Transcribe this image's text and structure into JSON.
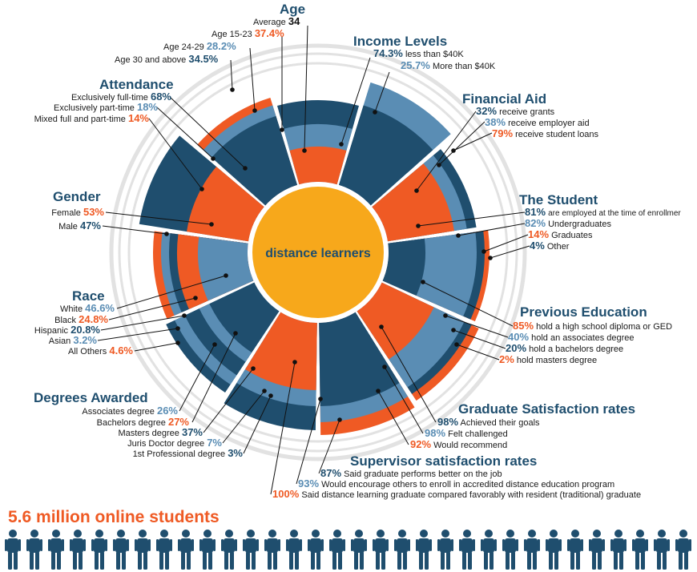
{
  "center_label": "distance learners",
  "students_title": "5.6 million online students",
  "colors": {
    "dark": "#1f4e6e",
    "light": "#5a8db4",
    "orange": "#ef5a24",
    "center": "#f7a81b",
    "ring": "#e2e2e2"
  },
  "chart_data": {
    "type": "radial-infographic",
    "categories": [
      {
        "key": "age",
        "title": "Age",
        "items": [
          {
            "label": "Average",
            "value": "34",
            "color": "black"
          },
          {
            "label": "Age 15-23",
            "value": "37.4%",
            "color": "orange"
          },
          {
            "label": "Age 24-29",
            "value": "28.2%",
            "color": "light"
          },
          {
            "label": "Age 30 and above",
            "value": "34.5%",
            "color": "dark"
          }
        ]
      },
      {
        "key": "income",
        "title": "Income Levels",
        "items": [
          {
            "label": "less than $40K",
            "value": "74.3%",
            "color": "dark"
          },
          {
            "label": "More than $40K",
            "value": "25.7%",
            "color": "light"
          }
        ]
      },
      {
        "key": "aid",
        "title": "Financial Aid",
        "items": [
          {
            "label": "receive grants",
            "value": "32%",
            "color": "dark"
          },
          {
            "label": "receive employer aid",
            "value": "38%",
            "color": "light"
          },
          {
            "label": "receive student loans",
            "value": "79%",
            "color": "orange"
          }
        ]
      },
      {
        "key": "student",
        "title": "The Student",
        "items": [
          {
            "label": "are employed at the time of enrollmer",
            "value": "81%",
            "color": "dark"
          },
          {
            "label": "Undergraduates",
            "value": "82%",
            "color": "light"
          },
          {
            "label": "Graduates",
            "value": "14%",
            "color": "orange"
          },
          {
            "label": "Other",
            "value": "4%",
            "color": "dark"
          }
        ]
      },
      {
        "key": "prev_edu",
        "title": "Previous Education",
        "items": [
          {
            "label": "hold a high school diploma or GED",
            "value": "85%",
            "color": "orange"
          },
          {
            "label": "hold an associates degree",
            "value": "40%",
            "color": "light"
          },
          {
            "label": "hold a bachelors degree",
            "value": "20%",
            "color": "dark"
          },
          {
            "label": "hold masters degree",
            "value": "2%",
            "color": "orange"
          }
        ]
      },
      {
        "key": "grad_sat",
        "title": "Graduate Satisfaction rates",
        "items": [
          {
            "label": "Achieved their goals",
            "value": "98%",
            "color": "dark"
          },
          {
            "label": "Felt challenged",
            "value": "98%",
            "color": "light"
          },
          {
            "label": "Would recommend",
            "value": "92%",
            "color": "orange"
          }
        ]
      },
      {
        "key": "sup_sat",
        "title": "Supervisor satisfaction rates",
        "items": [
          {
            "label": "Said graduate performs better on the job",
            "value": "87%",
            "color": "dark"
          },
          {
            "label": "Would encourage others to enroll in accredited distance education program",
            "value": "93%",
            "color": "light"
          },
          {
            "label": "Said distance learning graduate compared favorably with resident (traditional) graduate",
            "value": "100%",
            "color": "orange"
          }
        ]
      },
      {
        "key": "degrees",
        "title": "Degrees Awarded",
        "items": [
          {
            "label": "Associates degree",
            "value": "26%",
            "color": "light"
          },
          {
            "label": "Bachelors degree",
            "value": "27%",
            "color": "orange"
          },
          {
            "label": "Masters degree",
            "value": "37%",
            "color": "dark"
          },
          {
            "label": "Juris Doctor degree",
            "value": "7%",
            "color": "light"
          },
          {
            "label": "1st Professional degree",
            "value": "3%",
            "color": "dark"
          }
        ]
      },
      {
        "key": "race",
        "title": "Race",
        "items": [
          {
            "label": "White",
            "value": "46.6%",
            "color": "light"
          },
          {
            "label": "Black",
            "value": "24.8%",
            "color": "orange"
          },
          {
            "label": "Hispanic",
            "value": "20.8%",
            "color": "dark"
          },
          {
            "label": "Asian",
            "value": "3.2%",
            "color": "light"
          },
          {
            "label": "All Others",
            "value": "4.6%",
            "color": "orange"
          }
        ]
      },
      {
        "key": "gender",
        "title": "Gender",
        "items": [
          {
            "label": "Female",
            "value": "53%",
            "color": "orange"
          },
          {
            "label": "Male",
            "value": "47%",
            "color": "dark"
          }
        ]
      },
      {
        "key": "attendance",
        "title": "Attendance",
        "items": [
          {
            "label": "Exclusively full-time",
            "value": "68%",
            "color": "dark"
          },
          {
            "label": "Exclusively part-time",
            "value": "18%",
            "color": "light"
          },
          {
            "label": "Mixed full and part-time",
            "value": "14%",
            "color": "orange"
          }
        ]
      }
    ]
  }
}
